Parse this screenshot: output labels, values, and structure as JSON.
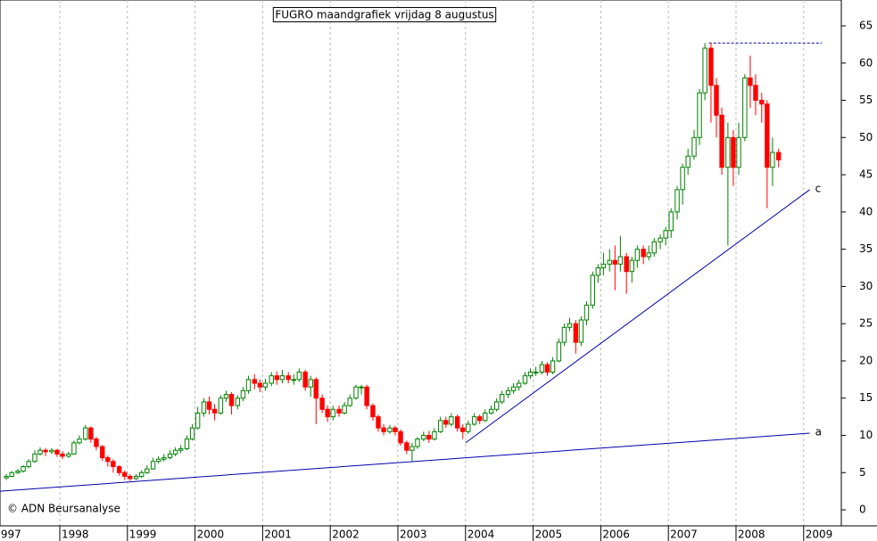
{
  "chart_data": {
    "type": "candlestick",
    "title": "FUGRO maandgrafiek vrijdag 8 augustus",
    "watermark": "© ADN Beursanalyse",
    "up_color": "#008000",
    "down_color": "#ff0000",
    "grid": true,
    "xlim": [
      1997.116,
      2009.557
    ],
    "xticks": [
      1997,
      1998,
      1999,
      2000,
      2001,
      2002,
      2003,
      2004,
      2005,
      2006,
      2007,
      2008,
      2009
    ],
    "ylim": [
      -2.15,
      68.47
    ],
    "yticks": [
      0,
      5,
      10,
      15,
      20,
      25,
      30,
      35,
      40,
      45,
      50,
      55,
      60,
      65
    ],
    "x": [
      1997.21,
      1997.29,
      1997.38,
      1997.46,
      1997.54,
      1997.63,
      1997.71,
      1997.79,
      1997.88,
      1997.96,
      1998.04,
      1998.13,
      1998.21,
      1998.29,
      1998.38,
      1998.46,
      1998.54,
      1998.63,
      1998.71,
      1998.79,
      1998.88,
      1998.96,
      1999.04,
      1999.13,
      1999.21,
      1999.29,
      1999.38,
      1999.46,
      1999.54,
      1999.63,
      1999.71,
      1999.79,
      1999.88,
      1999.96,
      2000.04,
      2000.13,
      2000.21,
      2000.29,
      2000.38,
      2000.46,
      2000.54,
      2000.63,
      2000.71,
      2000.79,
      2000.88,
      2000.96,
      2001.04,
      2001.13,
      2001.21,
      2001.29,
      2001.38,
      2001.46,
      2001.54,
      2001.63,
      2001.71,
      2001.79,
      2001.88,
      2001.96,
      2002.04,
      2002.13,
      2002.21,
      2002.29,
      2002.38,
      2002.46,
      2002.54,
      2002.63,
      2002.71,
      2002.79,
      2002.88,
      2002.96,
      2003.04,
      2003.13,
      2003.21,
      2003.29,
      2003.38,
      2003.46,
      2003.54,
      2003.63,
      2003.71,
      2003.79,
      2003.88,
      2003.96,
      2004.04,
      2004.13,
      2004.21,
      2004.29,
      2004.38,
      2004.46,
      2004.54,
      2004.63,
      2004.71,
      2004.79,
      2004.88,
      2004.96,
      2005.04,
      2005.13,
      2005.21,
      2005.29,
      2005.38,
      2005.46,
      2005.54,
      2005.63,
      2005.71,
      2005.79,
      2005.88,
      2005.96,
      2006.04,
      2006.13,
      2006.21,
      2006.29,
      2006.38,
      2006.46,
      2006.54,
      2006.63,
      2006.71,
      2006.79,
      2006.88,
      2006.96,
      2007.04,
      2007.13,
      2007.21,
      2007.29,
      2007.38,
      2007.46,
      2007.54,
      2007.63,
      2007.71,
      2007.79,
      2007.88,
      2007.96,
      2008.04,
      2008.13,
      2008.21,
      2008.29,
      2008.38,
      2008.46,
      2008.54,
      2008.63
    ],
    "open": [
      4.3,
      4.5,
      5.0,
      5.2,
      5.8,
      6.5,
      7.5,
      8.0,
      7.8,
      8.0,
      7.5,
      7.2,
      7.5,
      9.0,
      9.5,
      11.0,
      9.5,
      8.5,
      7.0,
      6.5,
      5.8,
      5.0,
      4.5,
      4.2,
      4.5,
      5.0,
      5.5,
      6.5,
      6.8,
      7.0,
      7.5,
      8.0,
      8.2,
      9.5,
      11.0,
      13.0,
      14.5,
      13.5,
      13.0,
      15.0,
      15.5,
      14.0,
      15.0,
      16.0,
      17.5,
      17.0,
      16.5,
      17.0,
      18.0,
      17.5,
      18.0,
      17.5,
      17.5,
      18.5,
      16.5,
      17.5,
      15.0,
      13.5,
      12.5,
      13.5,
      13.0,
      14.0,
      15.0,
      16.5,
      16.5,
      14.0,
      12.5,
      11.0,
      10.5,
      11.0,
      10.5,
      9.0,
      8.0,
      8.5,
      9.5,
      10.0,
      9.5,
      10.5,
      12.0,
      11.5,
      12.5,
      11.0,
      10.5,
      11.5,
      12.5,
      12.0,
      13.0,
      13.5,
      14.5,
      15.5,
      16.0,
      16.5,
      17.0,
      18.0,
      18.5,
      18.5,
      19.5,
      18.5,
      20.0,
      22.5,
      24.5,
      25.0,
      22.5,
      25.5,
      27.5,
      31.5,
      32.5,
      33.0,
      33.5,
      33.0,
      34.0,
      32.0,
      33.5,
      35.0,
      34.0,
      34.5,
      36.0,
      36.5,
      37.5,
      40.0,
      43.0,
      46.0,
      47.5,
      50.0,
      56.0,
      62.0,
      57.0,
      53.0,
      46.0,
      50.0,
      46.0,
      50.0,
      58.0,
      57.0,
      55.0,
      54.5,
      46.0,
      48.0
    ],
    "high": [
      4.8,
      5.2,
      5.5,
      6.0,
      6.8,
      8.0,
      8.4,
      8.3,
      8.3,
      8.2,
      7.9,
      7.8,
      9.3,
      10.0,
      11.4,
      11.2,
      9.8,
      8.7,
      7.3,
      6.8,
      6.0,
      5.3,
      4.8,
      4.8,
      5.3,
      6.0,
      7.0,
      7.2,
      7.5,
      8.0,
      8.4,
      8.7,
      10.0,
      11.5,
      13.8,
      15.0,
      15.2,
      14.2,
      15.4,
      16.0,
      15.8,
      15.4,
      16.5,
      18.0,
      18.2,
      17.5,
      17.6,
      18.5,
      18.6,
      18.8,
      18.5,
      18.2,
      19.0,
      18.8,
      18.0,
      17.8,
      15.5,
      14.0,
      14.0,
      14.0,
      14.5,
      15.5,
      16.8,
      16.8,
      16.8,
      14.3,
      12.8,
      11.5,
      11.4,
      11.3,
      10.8,
      9.3,
      9.0,
      9.8,
      10.5,
      10.6,
      11.0,
      12.5,
      12.5,
      13.0,
      12.8,
      11.5,
      12.0,
      13.0,
      12.8,
      13.5,
      14.0,
      15.0,
      16.0,
      16.5,
      17.0,
      17.5,
      18.5,
      19.0,
      19.2,
      20.0,
      19.8,
      20.5,
      23.0,
      25.0,
      25.8,
      25.5,
      26.0,
      28.0,
      32.0,
      33.0,
      34.5,
      35.0,
      35.5,
      36.8,
      34.5,
      34.0,
      35.5,
      35.5,
      35.5,
      36.5,
      37.0,
      38.0,
      40.5,
      43.5,
      46.5,
      48.5,
      51.0,
      56.5,
      62.7,
      62.7,
      58.0,
      54.0,
      52.0,
      51.0,
      52.0,
      58.5,
      61.0,
      58.5,
      56.0,
      55.0,
      50.0,
      48.5
    ],
    "low": [
      4.0,
      4.4,
      4.8,
      5.0,
      5.6,
      6.3,
      7.3,
      7.2,
      7.5,
      7.1,
      6.8,
      7.0,
      7.4,
      8.8,
      9.3,
      9.0,
      8.0,
      6.6,
      5.8,
      5.0,
      4.6,
      4.0,
      3.9,
      4.0,
      4.3,
      4.8,
      5.4,
      6.2,
      6.5,
      6.8,
      7.2,
      7.6,
      8.0,
      9.3,
      10.8,
      12.5,
      12.8,
      12.0,
      12.8,
      14.5,
      12.8,
      13.5,
      14.6,
      15.6,
      16.2,
      15.8,
      16.0,
      16.6,
      16.8,
      17.0,
      17.0,
      16.8,
      17.2,
      16.0,
      15.2,
      11.5,
      13.0,
      11.8,
      12.0,
      12.5,
      12.8,
      13.8,
      14.8,
      15.5,
      13.5,
      12.0,
      10.5,
      10.0,
      10.2,
      10.0,
      8.6,
      7.5,
      6.5,
      8.2,
      9.2,
      9.0,
      9.3,
      10.3,
      11.0,
      11.2,
      10.5,
      9.5,
      10.2,
      11.3,
      11.5,
      11.8,
      12.8,
      13.2,
      14.2,
      15.0,
      15.6,
      16.0,
      16.8,
      17.6,
      18.0,
      18.2,
      18.0,
      18.2,
      19.8,
      22.0,
      24.0,
      21.0,
      22.0,
      24.8,
      27.0,
      30.5,
      31.5,
      32.0,
      29.5,
      32.0,
      29.0,
      30.5,
      32.5,
      33.0,
      33.5,
      34.0,
      35.0,
      35.5,
      36.5,
      39.0,
      41.0,
      45.0,
      47.0,
      49.0,
      55.0,
      52.0,
      50.0,
      45.0,
      35.5,
      43.5,
      45.0,
      49.5,
      54.0,
      53.0,
      52.0,
      40.5,
      43.5,
      46.0
    ],
    "close": [
      4.5,
      5.0,
      5.2,
      5.8,
      6.5,
      7.5,
      8.0,
      7.8,
      8.0,
      7.5,
      7.2,
      7.5,
      9.0,
      9.5,
      11.0,
      9.5,
      8.5,
      7.0,
      6.5,
      5.8,
      5.0,
      4.5,
      4.2,
      4.5,
      5.0,
      5.5,
      6.5,
      6.8,
      7.0,
      7.5,
      8.0,
      8.2,
      9.5,
      11.0,
      13.0,
      14.5,
      13.5,
      13.0,
      15.0,
      15.5,
      14.0,
      15.0,
      16.0,
      17.5,
      17.0,
      16.5,
      17.0,
      18.0,
      17.5,
      18.0,
      17.5,
      17.5,
      18.5,
      16.5,
      17.5,
      15.0,
      13.5,
      12.5,
      13.5,
      13.0,
      14.0,
      15.0,
      16.5,
      16.5,
      14.0,
      12.5,
      11.0,
      10.5,
      11.0,
      10.5,
      9.0,
      8.0,
      8.5,
      9.5,
      10.0,
      9.5,
      10.5,
      12.0,
      11.5,
      12.5,
      11.0,
      10.5,
      11.5,
      12.5,
      12.0,
      13.0,
      13.5,
      14.5,
      15.5,
      16.0,
      16.5,
      17.0,
      18.0,
      18.5,
      18.5,
      19.5,
      18.5,
      20.0,
      22.5,
      24.5,
      25.0,
      22.5,
      25.5,
      27.5,
      31.5,
      32.5,
      33.0,
      33.5,
      33.0,
      34.0,
      32.0,
      33.5,
      35.0,
      34.0,
      34.5,
      36.0,
      36.5,
      37.5,
      40.0,
      43.0,
      46.0,
      47.5,
      50.0,
      56.0,
      62.0,
      57.0,
      53.0,
      46.0,
      50.0,
      46.0,
      50.0,
      58.0,
      57.0,
      55.0,
      54.5,
      46.0,
      48.0,
      47.0
    ],
    "trendlines": [
      {
        "name": "a",
        "color": "#0000aa",
        "x": [
          1997.116,
          2009.09
        ],
        "y": [
          2.5,
          10.3
        ]
      },
      {
        "name": "c",
        "color": "#0000aa",
        "x": [
          2004.0,
          2009.09
        ],
        "y": [
          9.0,
          43.0
        ]
      }
    ],
    "resistance": {
      "color": "#0000aa",
      "x": [
        2007.6,
        2009.27
      ],
      "y": 62.7
    }
  }
}
